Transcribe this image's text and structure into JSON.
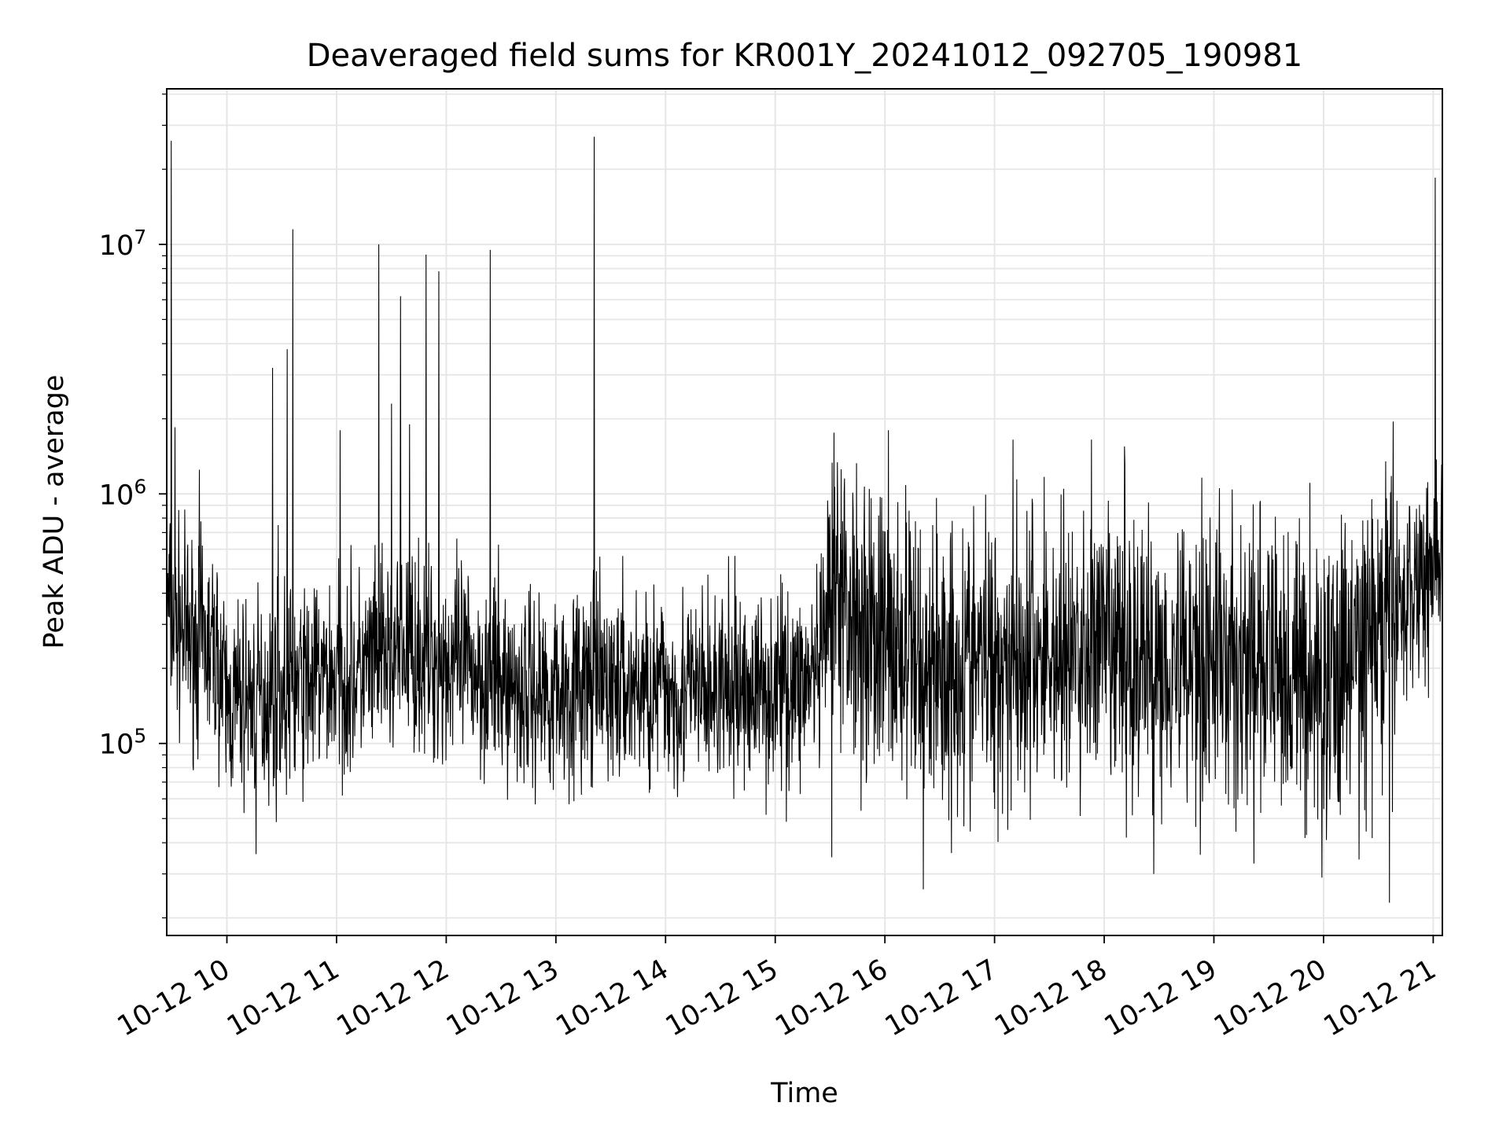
{
  "chart_data": {
    "type": "line",
    "title": "Deaveraged field sums for KR001Y_20241012_092705_190981",
    "xlabel": "Time",
    "ylabel": "Peak ADU - average",
    "yscale": "log",
    "ylim": [
      17000,
      42000000
    ],
    "xlim": [
      "2024-10-12T09:27:05",
      "2024-10-12T21:05:00"
    ],
    "x_ticks": [
      "2024-10-12T10:00:00",
      "2024-10-12T11:00:00",
      "2024-10-12T12:00:00",
      "2024-10-12T13:00:00",
      "2024-10-12T14:00:00",
      "2024-10-12T15:00:00",
      "2024-10-12T16:00:00",
      "2024-10-12T17:00:00",
      "2024-10-12T18:00:00",
      "2024-10-12T19:00:00",
      "2024-10-12T20:00:00",
      "2024-10-12T21:00:00"
    ],
    "x_tick_labels": [
      "10-12 10",
      "10-12 11",
      "10-12 12",
      "10-12 13",
      "10-12 14",
      "10-12 15",
      "10-12 16",
      "10-12 17",
      "10-12 18",
      "10-12 19",
      "10-12 20",
      "10-12 21"
    ],
    "y_ticks": [
      100000,
      1000000,
      10000000
    ],
    "y_tick_labels": [
      {
        "base": "10",
        "exp": "5"
      },
      {
        "base": "10",
        "exp": "6"
      },
      {
        "base": "10",
        "exp": "7"
      }
    ],
    "grid": true,
    "line_color": "#000000",
    "grid_color": "#e6e6e6",
    "series": [
      {
        "x": [
          "2024-10-12T09:27:05",
          "2024-10-12T09:33:00",
          "2024-10-12T09:40:00",
          "2024-10-12T09:48:00",
          "2024-10-12T09:55:00",
          "2024-10-12T10:00:00",
          "2024-10-12T10:10:00",
          "2024-10-12T10:20:00",
          "2024-10-12T10:30:00",
          "2024-10-12T10:40:00",
          "2024-10-12T10:50:00",
          "2024-10-12T11:00:00",
          "2024-10-12T11:10:00",
          "2024-10-12T11:20:00",
          "2024-10-12T11:30:00",
          "2024-10-12T11:40:00",
          "2024-10-12T11:50:00",
          "2024-10-12T12:00:00",
          "2024-10-12T12:15:00",
          "2024-10-12T12:30:00",
          "2024-10-12T12:45:00",
          "2024-10-12T13:00:00",
          "2024-10-12T13:15:00",
          "2024-10-12T13:30:00",
          "2024-10-12T13:45:00",
          "2024-10-12T14:00:00",
          "2024-10-12T14:15:00",
          "2024-10-12T14:30:00",
          "2024-10-12T14:45:00",
          "2024-10-12T15:00:00",
          "2024-10-12T15:15:00",
          "2024-10-12T15:25:00",
          "2024-10-12T15:30:00",
          "2024-10-12T15:45:00",
          "2024-10-12T16:00:00",
          "2024-10-12T16:15:00",
          "2024-10-12T16:30:00",
          "2024-10-12T16:45:00",
          "2024-10-12T17:00:00",
          "2024-10-12T17:15:00",
          "2024-10-12T17:30:00",
          "2024-10-12T17:45:00",
          "2024-10-12T18:00:00",
          "2024-10-12T18:15:00",
          "2024-10-12T18:30:00",
          "2024-10-12T18:45:00",
          "2024-10-12T19:00:00",
          "2024-10-12T19:15:00",
          "2024-10-12T19:30:00",
          "2024-10-12T19:45:00",
          "2024-10-12T20:00:00",
          "2024-10-12T20:15:00",
          "2024-10-12T20:30:00",
          "2024-10-12T20:45:00",
          "2024-10-12T21:00:00",
          "2024-10-12T21:05:00"
        ],
        "y": [
          350000,
          300000,
          260000,
          250000,
          220000,
          140000,
          150000,
          155000,
          160000,
          170000,
          180000,
          185000,
          190000,
          200000,
          230000,
          240000,
          220000,
          210000,
          200000,
          175000,
          165000,
          165000,
          170000,
          170000,
          168000,
          165000,
          160000,
          160000,
          165000,
          170000,
          175000,
          190000,
          400000,
          330000,
          260000,
          220000,
          205000,
          210000,
          220000,
          225000,
          230000,
          220000,
          230000,
          220000,
          215000,
          230000,
          230000,
          205000,
          200000,
          190000,
          170000,
          220000,
          270000,
          380000,
          560000,
          600000
        ],
        "spikes": [
          {
            "x": "2024-10-12T09:29:30",
            "y": 26000000
          },
          {
            "x": "2024-10-12T09:31:30",
            "y": 1850000
          },
          {
            "x": "2024-10-12T09:45:00",
            "y": 1250000
          },
          {
            "x": "2024-10-12T10:25:00",
            "y": 3200000
          },
          {
            "x": "2024-10-12T10:28:00",
            "y": 750000
          },
          {
            "x": "2024-10-12T10:33:00",
            "y": 3800000
          },
          {
            "x": "2024-10-12T10:36:00",
            "y": 11500000
          },
          {
            "x": "2024-10-12T11:02:00",
            "y": 1800000
          },
          {
            "x": "2024-10-12T11:23:00",
            "y": 10000000
          },
          {
            "x": "2024-10-12T11:30:00",
            "y": 2300000
          },
          {
            "x": "2024-10-12T11:35:00",
            "y": 6200000
          },
          {
            "x": "2024-10-12T11:40:00",
            "y": 1900000
          },
          {
            "x": "2024-10-12T11:49:00",
            "y": 9100000
          },
          {
            "x": "2024-10-12T11:56:00",
            "y": 7800000
          },
          {
            "x": "2024-10-12T12:24:00",
            "y": 9500000
          },
          {
            "x": "2024-10-12T13:21:00",
            "y": 27000000
          },
          {
            "x": "2024-10-12T16:02:00",
            "y": 1800000
          },
          {
            "x": "2024-10-12T17:10:00",
            "y": 1650000
          },
          {
            "x": "2024-10-12T17:53:00",
            "y": 1650000
          },
          {
            "x": "2024-10-12T18:11:00",
            "y": 1550000
          },
          {
            "x": "2024-10-12T20:38:00",
            "y": 1950000
          },
          {
            "x": "2024-10-12T21:01:00",
            "y": 18500000
          }
        ],
        "dips": [
          {
            "x": "2024-10-12T10:16:00",
            "y": 36000
          },
          {
            "x": "2024-10-12T15:31:00",
            "y": 35000
          },
          {
            "x": "2024-10-12T16:21:00",
            "y": 26000
          },
          {
            "x": "2024-10-12T18:27:00",
            "y": 30000
          },
          {
            "x": "2024-10-12T19:22:00",
            "y": 33000
          },
          {
            "x": "2024-10-12T19:59:00",
            "y": 29000
          },
          {
            "x": "2024-10-12T20:36:00",
            "y": 23000
          }
        ]
      }
    ]
  }
}
